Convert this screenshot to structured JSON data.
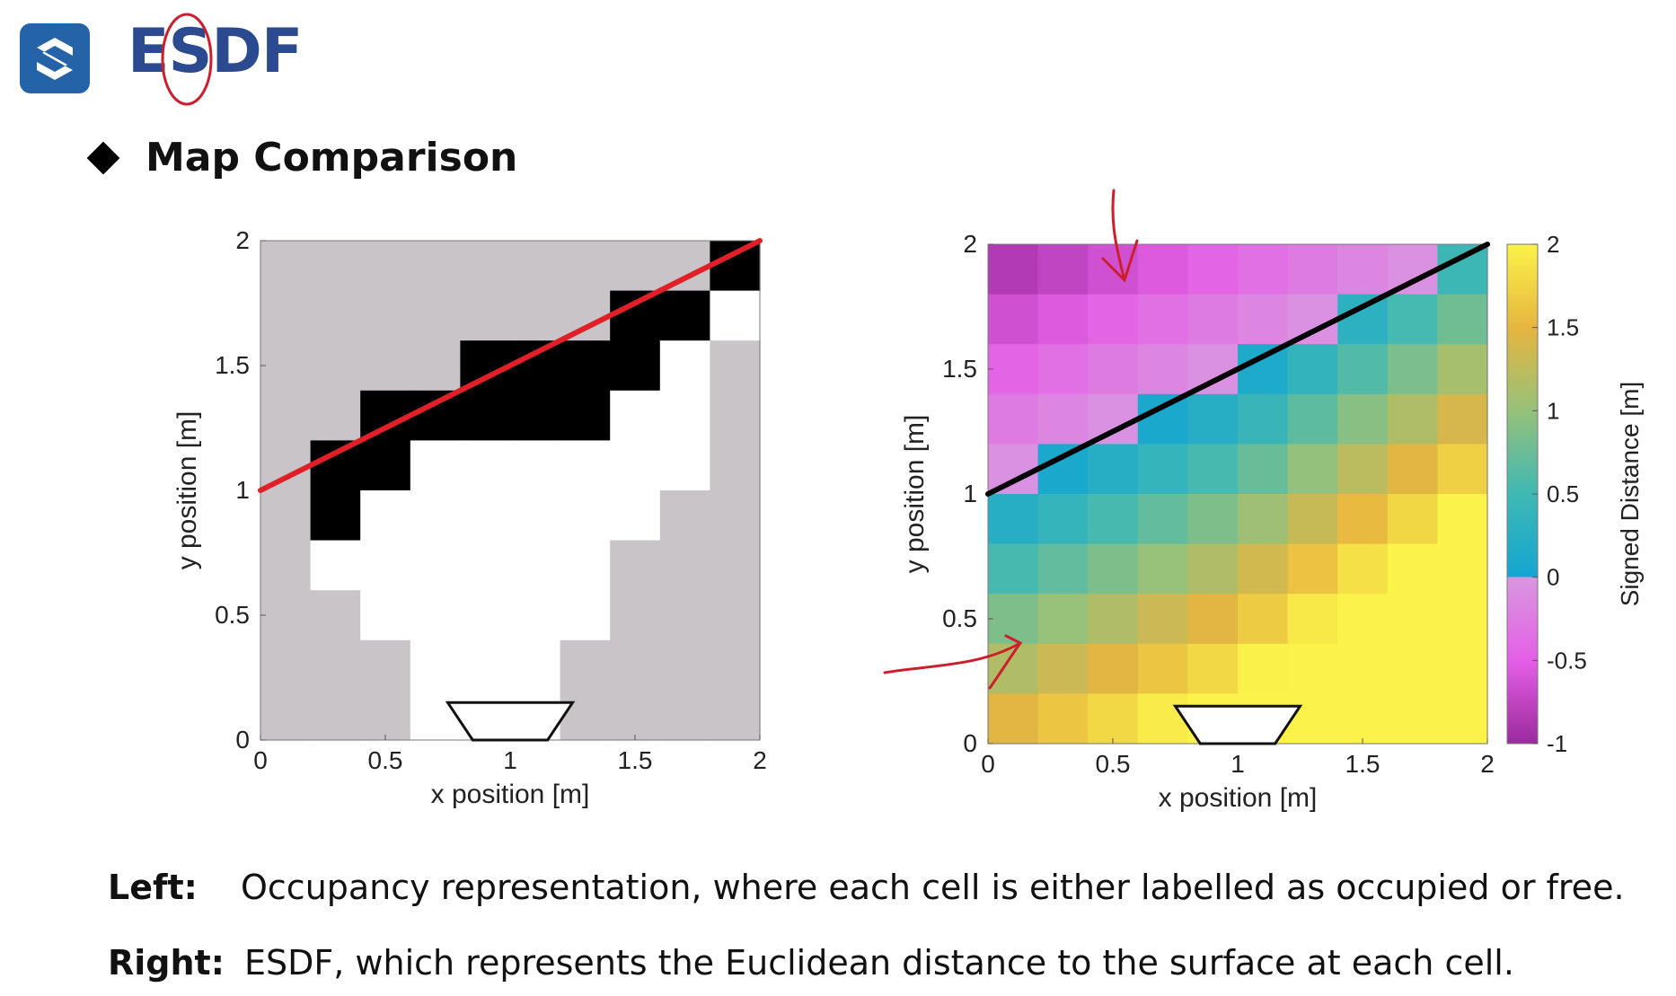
{
  "header": {
    "title": "ESDF",
    "logo_icon": "logo-s-icon",
    "accent": "#2563a8"
  },
  "section": {
    "title": "Map Comparison",
    "bullet_icon": "diamond-bullet-icon"
  },
  "chart_data": [
    {
      "type": "heatmap",
      "name": "occupancy",
      "title": "",
      "xlabel": "x position [m]",
      "ylabel": "y position [m]",
      "xlim": [
        0,
        2
      ],
      "ylim": [
        0,
        2
      ],
      "xticks": [
        "0",
        "0.5",
        "1",
        "1.5",
        "2"
      ],
      "yticks": [
        "0",
        "0.5",
        "1",
        "1.5",
        "2"
      ],
      "grid_cols": 10,
      "grid_rows": 10,
      "cell_legend": {
        "0": "free",
        "1": "occupied",
        "-1": "unknown"
      },
      "cells": [
        [
          -1,
          -1,
          -1,
          -1,
          -1,
          -1,
          -1,
          -1,
          -1,
          1
        ],
        [
          -1,
          -1,
          -1,
          -1,
          -1,
          -1,
          -1,
          1,
          1,
          0
        ],
        [
          -1,
          -1,
          -1,
          -1,
          1,
          1,
          1,
          1,
          0,
          -1
        ],
        [
          -1,
          -1,
          1,
          1,
          1,
          1,
          1,
          0,
          0,
          -1
        ],
        [
          -1,
          1,
          1,
          0,
          0,
          0,
          0,
          0,
          0,
          -1
        ],
        [
          -1,
          1,
          0,
          0,
          0,
          0,
          0,
          0,
          -1,
          -1
        ],
        [
          -1,
          0,
          0,
          0,
          0,
          0,
          0,
          -1,
          -1,
          -1
        ],
        [
          -1,
          -1,
          0,
          0,
          0,
          0,
          0,
          -1,
          -1,
          -1
        ],
        [
          -1,
          -1,
          -1,
          0,
          0,
          0,
          -1,
          -1,
          -1,
          -1
        ],
        [
          -1,
          -1,
          -1,
          0,
          0,
          0,
          -1,
          -1,
          -1,
          -1
        ]
      ],
      "surface_line": {
        "x": [
          0,
          2
        ],
        "y": [
          1,
          2
        ],
        "color": "#e01f26"
      },
      "sensor_trapezoid": {
        "x": [
          0.75,
          1.25,
          1.15,
          0.85
        ],
        "y": [
          0.15,
          0.15,
          0,
          0
        ]
      },
      "colors": {
        "occupied": "#000000",
        "free": "#ffffff",
        "unknown": "#c8c4c8"
      }
    },
    {
      "type": "heatmap",
      "name": "esdf",
      "title": "",
      "xlabel": "x position [m]",
      "ylabel": "y position [m]",
      "xlim": [
        0,
        2
      ],
      "ylim": [
        0,
        2
      ],
      "xticks": [
        "0",
        "0.5",
        "1",
        "1.5",
        "2"
      ],
      "yticks": [
        "0",
        "0.5",
        "1",
        "1.5",
        "2"
      ],
      "grid_cols": 10,
      "grid_rows": 10,
      "surface_line": {
        "x": [
          0,
          2
        ],
        "y": [
          1,
          2
        ],
        "color": "#000000"
      },
      "sensor_trapezoid": {
        "x": [
          0.75,
          1.25,
          1.15,
          0.85
        ],
        "y": [
          0.15,
          0.15,
          0,
          0
        ]
      },
      "colorbar": {
        "label": "Signed Distance [m]",
        "range": [
          -1,
          2
        ],
        "ticks": [
          "2",
          "1.5",
          "1",
          "0.5",
          "0",
          "-0.5",
          "-1"
        ],
        "colors": [
          "#9b2a9e",
          "#e45fe6",
          "#d997e0",
          "#13a5d2",
          "#3fb8b4",
          "#96c17a",
          "#e6b53f",
          "#fbf24a"
        ]
      }
    }
  ],
  "captions": [
    {
      "key": "Left:",
      "text": "Occupancy representation,  where each cell is either labelled as occupied or free."
    },
    {
      "key": "Right:",
      "text": "ESDF, which represents the Euclidean distance to the surface at each cell."
    }
  ],
  "annotations": {
    "ink_color": "#cc1f2e"
  }
}
